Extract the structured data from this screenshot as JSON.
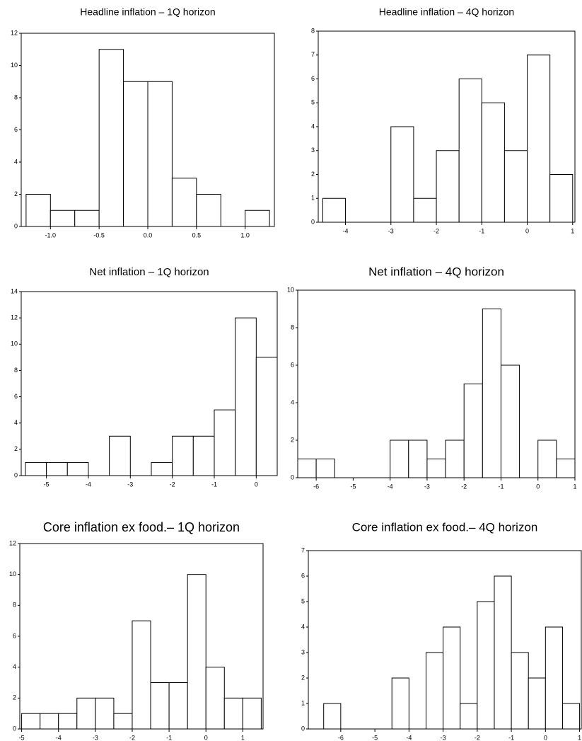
{
  "chart_data": [
    {
      "type": "histogram",
      "title": "Headline inflation – 1Q horizon",
      "bins": [
        -1.25,
        -1,
        -0.75,
        -0.5,
        -0.25,
        0,
        0.25,
        0.5,
        0.75,
        1,
        1.25
      ],
      "values": [
        2,
        1,
        1,
        11,
        9,
        9,
        3,
        2,
        0,
        1
      ],
      "xlim": [
        -1.3,
        1.3
      ],
      "ylim": [
        0,
        12
      ],
      "xticks": [
        {
          "value": -1,
          "label": "-1.0"
        },
        -0.5,
        {
          "value": 0,
          "label": "0.0"
        },
        0.5,
        {
          "value": 1,
          "label": "1.0"
        }
      ],
      "yticks": [
        0,
        2,
        4,
        6,
        8,
        10,
        12
      ],
      "color": "#ffffff"
    },
    {
      "type": "histogram",
      "title": "Headline inflation – 4Q horizon",
      "bins": [
        -4.5,
        -4,
        -3.5,
        -3,
        -2.5,
        -2,
        -1.5,
        -1,
        -0.5,
        0,
        0.5,
        1
      ],
      "values": [
        1,
        0,
        0,
        4,
        1,
        3,
        6,
        5,
        3,
        7,
        2
      ],
      "xlim": [
        -4.6,
        1.05
      ],
      "ylim": [
        0,
        8
      ],
      "xticks": [
        -4,
        -3,
        -2,
        -1,
        0,
        1
      ],
      "yticks": [
        0,
        1,
        2,
        3,
        4,
        5,
        6,
        7,
        8
      ],
      "color": "#ffffff"
    },
    {
      "type": "histogram",
      "title": "Net inflation – 1Q horizon",
      "bins": [
        -5.5,
        -5,
        -4.5,
        -4,
        -3.5,
        -3,
        -2.5,
        -2,
        -1.5,
        -1,
        -0.5,
        0,
        0.5
      ],
      "values": [
        1,
        1,
        1,
        0,
        3,
        0,
        1,
        3,
        3,
        5,
        12,
        9
      ],
      "xlim": [
        -5.6,
        0.5
      ],
      "ylim": [
        0,
        14
      ],
      "xticks": [
        -5,
        -4,
        -3,
        -2,
        -1,
        0
      ],
      "yticks": [
        0,
        2,
        4,
        6,
        8,
        10,
        12,
        14
      ],
      "color": "#ffffff"
    },
    {
      "type": "histogram",
      "title": "Net inflation – 4Q horizon",
      "bins": [
        -6.5,
        -6,
        -5.5,
        -5,
        -4.5,
        -4,
        -3.5,
        -3,
        -2.5,
        -2,
        -1.5,
        -1,
        -0.5,
        0,
        0.5,
        1
      ],
      "values": [
        1,
        1,
        0,
        0,
        0,
        2,
        2,
        1,
        2,
        5,
        9,
        6,
        0,
        2,
        1
      ],
      "xlim": [
        -6.5,
        1
      ],
      "ylim": [
        0,
        10
      ],
      "xticks": [
        -6,
        -5,
        -4,
        -3,
        -2,
        -1,
        0,
        1
      ],
      "yticks": [
        0,
        2,
        4,
        6,
        8,
        10
      ],
      "color": "#ffffff"
    },
    {
      "type": "histogram",
      "title": "Core inflation ex food.– 1Q horizon",
      "bins": [
        -5,
        -4.5,
        -4,
        -3.5,
        -3,
        -2.5,
        -2,
        -1.5,
        -1,
        -0.5,
        0,
        0.5,
        1,
        1.5
      ],
      "values": [
        1,
        1,
        1,
        2,
        2,
        1,
        7,
        3,
        3,
        10,
        4,
        2,
        2
      ],
      "xlim": [
        -5.05,
        1.55
      ],
      "ylim": [
        0,
        12
      ],
      "xticks": [
        -5,
        -4,
        -3,
        -2,
        -1,
        0,
        1
      ],
      "yticks": [
        0,
        2,
        4,
        6,
        8,
        10,
        12
      ],
      "color": "#ffffff"
    },
    {
      "type": "histogram",
      "title": "Core inflation ex food.– 4Q horizon",
      "bins": [
        -6.5,
        -6,
        -5.5,
        -5,
        -4.5,
        -4,
        -3.5,
        -3,
        -2.5,
        -2,
        -1.5,
        -1,
        -0.5,
        0,
        0.5,
        1
      ],
      "values": [
        1,
        0,
        0,
        0,
        2,
        0,
        3,
        4,
        1,
        5,
        6,
        3,
        2,
        4,
        1
      ],
      "xlim": [
        -6.95,
        1.05
      ],
      "ylim": [
        0,
        7
      ],
      "xticks": [
        -6,
        -5,
        -4,
        -3,
        -2,
        -1,
        0,
        1
      ],
      "yticks": [
        0,
        1,
        2,
        3,
        4,
        5,
        6,
        7
      ],
      "color": "#ffffff"
    }
  ]
}
